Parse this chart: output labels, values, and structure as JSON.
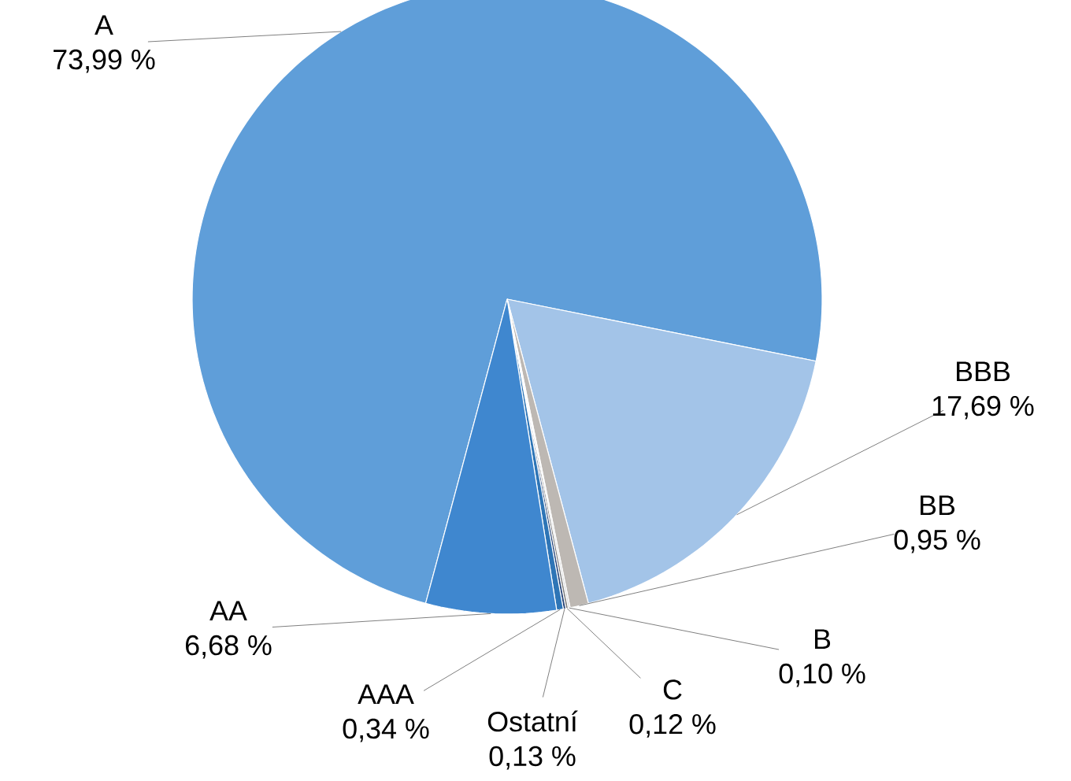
{
  "chart_data": {
    "type": "pie",
    "categories": [
      "A",
      "BBB",
      "BB",
      "B",
      "C",
      "Ostatní",
      "AAA",
      "AA"
    ],
    "values": [
      73.99,
      17.69,
      0.95,
      0.1,
      0.12,
      0.13,
      0.34,
      6.68
    ],
    "value_labels": [
      "73,99 %",
      "17,69 %",
      "0,95 %",
      "0,10 %",
      "0,12 %",
      "0,13 %",
      "0,34 %",
      "6,68 %"
    ],
    "colors": [
      "#5f9ed9",
      "#a3c4e8",
      "#bdb8b3",
      "#d9d9d9",
      "#7f7f7f",
      "#264478",
      "#2e75b6",
      "#3f87cf"
    ]
  }
}
